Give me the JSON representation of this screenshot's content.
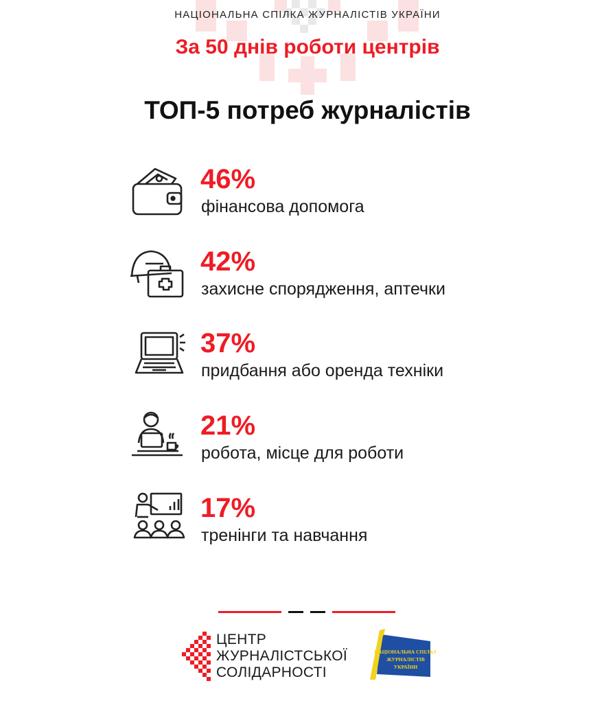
{
  "header": {
    "org_name": "НАЦІОНАЛЬНА СПІЛКА ЖУРНАЛІСТІВ УКРАЇНИ",
    "subtitle": "За 50 днів роботи центрів",
    "title": "ТОП-5 потреб журналістів"
  },
  "needs": [
    {
      "percent": "46%",
      "label": "фінансова допомога",
      "icon": "wallet-icon"
    },
    {
      "percent": "42%",
      "label": "захисне спорядження, аптечки",
      "icon": "helmet-first-aid-icon"
    },
    {
      "percent": "37%",
      "label": "придбання або оренда техніки",
      "icon": "laptop-icon"
    },
    {
      "percent": "21%",
      "label": "робота, місце для роботи",
      "icon": "workplace-icon"
    },
    {
      "percent": "17%",
      "label": "тренінги та навчання",
      "icon": "training-icon"
    }
  ],
  "footer": {
    "center_logo_lines": [
      "ЦЕНТР",
      "ЖУРНАЛІСТСЬКОЇ",
      "СОЛІДАРНОСТІ"
    ],
    "union_logo_text": "НАЦІОНАЛЬНА СПІЛКА ЖУРНАЛІСТІВ УКРАЇНИ"
  },
  "colors": {
    "accent": "#ee1c25",
    "text": "#111111",
    "ornament": "#fbe3e3"
  }
}
